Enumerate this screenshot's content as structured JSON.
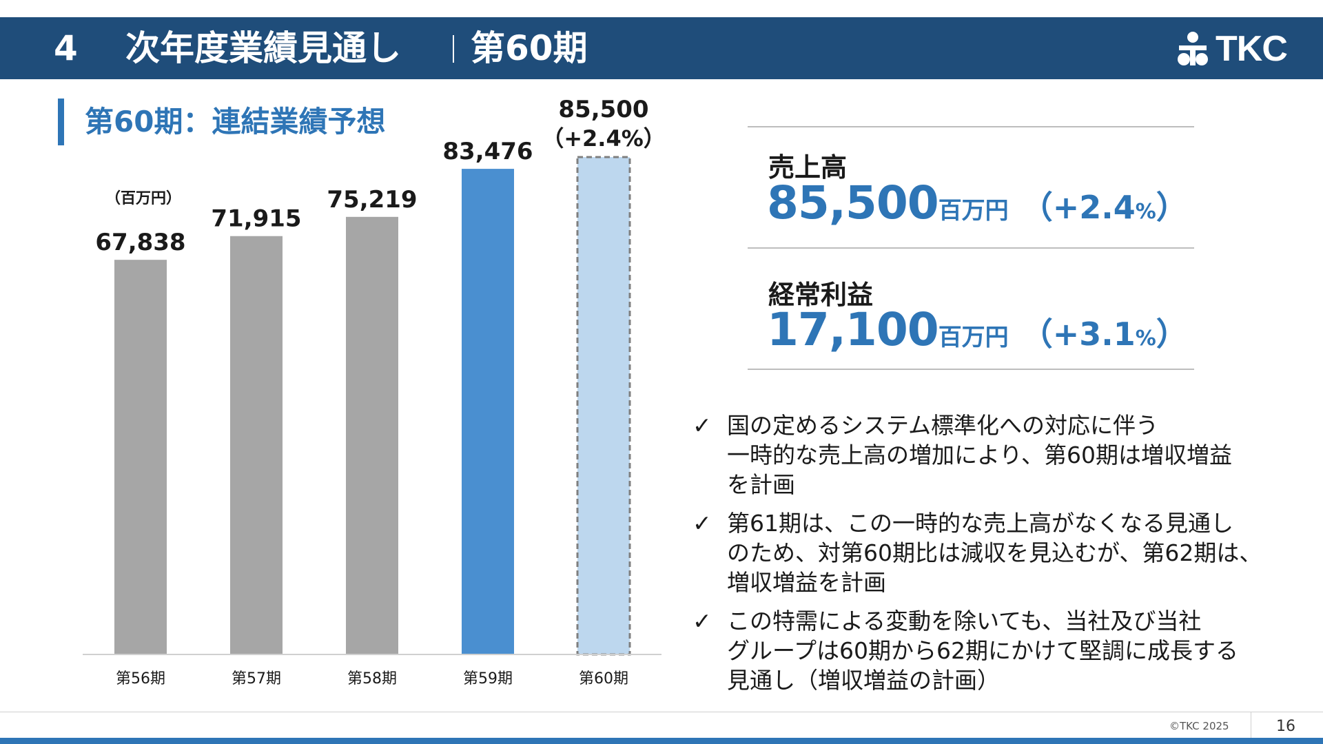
{
  "header": {
    "number": "4",
    "title": "次年度業績見通し",
    "subtitle": "第60期",
    "logo_text": "TKC"
  },
  "section": {
    "title": "第60期：連結業績予想"
  },
  "chart_data": {
    "type": "bar",
    "unit_label": "（百万円）",
    "categories": [
      "第56期",
      "第57期",
      "第58期",
      "第59期",
      "第60期"
    ],
    "values": [
      67838,
      71915,
      75219,
      83476,
      85500
    ],
    "value_labels": [
      "67,838",
      "71,915",
      "75,219",
      "83,476",
      "85,500"
    ],
    "forecast_growth": "（+2.4%）",
    "bar_colors": [
      "#a6a6a6",
      "#a6a6a6",
      "#a6a6a6",
      "#4a8fd0",
      "#bdd7ee"
    ],
    "forecast_outline_color": "#7f7f7f",
    "ylim": [
      0,
      90000
    ],
    "grid": false,
    "legend": "none"
  },
  "kpis": [
    {
      "label": "売上高",
      "value": "85,500",
      "unit": "百万円",
      "open": "（",
      "change": "+2.4",
      "pct": "%",
      "close": "）"
    },
    {
      "label": "経常利益",
      "value": "17,100",
      "unit": "百万円",
      "open": "（",
      "change": "+3.1",
      "pct": "%",
      "close": "）"
    }
  ],
  "bullets": [
    {
      "check": "✓",
      "lines": [
        "国の定めるシステム標準化への対応に伴う",
        "一時的な売上高の増加により、第60期は増収増益",
        "を計画"
      ]
    },
    {
      "check": "✓",
      "lines": [
        "第61期は、この一時的な売上高がなくなる見通し",
        "のため、対第60期比は減収を見込むが、第62期は、",
        "増収増益を計画"
      ]
    },
    {
      "check": "✓",
      "lines": [
        "この特需による変動を除いても、当社及び当社",
        "グループは60期から62期にかけて堅調に成長する",
        "見通し（増収増益の計画）"
      ]
    }
  ],
  "footer": {
    "copyright": "©TKC 2025",
    "page": "16"
  },
  "colors": {
    "header_bg": "#1f4d7a",
    "accent": "#2e75b6"
  }
}
